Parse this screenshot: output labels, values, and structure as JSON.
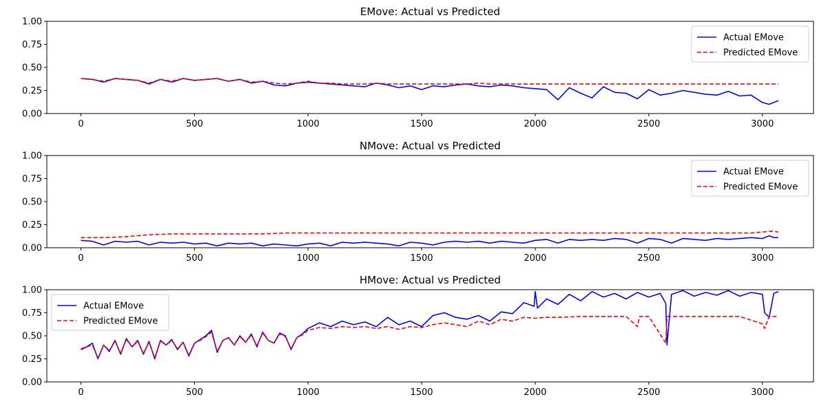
{
  "colors": {
    "actual": "#0000ff",
    "predicted": "#ff0000",
    "frame": "#000000",
    "legend_border": "#cccccc"
  },
  "chart_data": [
    {
      "type": "line",
      "title": "EMove: Actual vs Predicted",
      "xlabel": "",
      "ylabel": "",
      "xlim": [
        -150,
        3225
      ],
      "ylim": [
        0,
        1
      ],
      "xticks": [
        0,
        500,
        1000,
        1500,
        2000,
        2500,
        3000
      ],
      "yticks": [
        0.0,
        0.25,
        0.5,
        0.75,
        1.0
      ],
      "ytick_labels": [
        "0.00",
        "0.25",
        "0.50",
        "0.75",
        "1.00"
      ],
      "legend": "top-right",
      "grid": false,
      "series": [
        {
          "name": "Actual EMove",
          "style": "solid",
          "color": "#0000ff",
          "x": [
            0,
            50,
            100,
            150,
            200,
            250,
            300,
            350,
            400,
            450,
            500,
            550,
            600,
            650,
            700,
            750,
            800,
            850,
            900,
            950,
            1000,
            1050,
            1100,
            1150,
            1200,
            1250,
            1300,
            1350,
            1400,
            1450,
            1500,
            1550,
            1600,
            1650,
            1700,
            1750,
            1800,
            1850,
            1900,
            1950,
            2000,
            2050,
            2100,
            2150,
            2200,
            2250,
            2300,
            2350,
            2400,
            2450,
            2500,
            2550,
            2600,
            2650,
            2700,
            2750,
            2800,
            2850,
            2900,
            2950,
            3000,
            3030,
            3050,
            3070
          ],
          "y": [
            0.38,
            0.37,
            0.34,
            0.38,
            0.37,
            0.36,
            0.32,
            0.37,
            0.34,
            0.38,
            0.36,
            0.37,
            0.38,
            0.35,
            0.37,
            0.33,
            0.35,
            0.31,
            0.3,
            0.33,
            0.34,
            0.33,
            0.32,
            0.31,
            0.3,
            0.29,
            0.33,
            0.31,
            0.28,
            0.3,
            0.26,
            0.3,
            0.29,
            0.31,
            0.32,
            0.3,
            0.29,
            0.31,
            0.3,
            0.28,
            0.27,
            0.26,
            0.15,
            0.28,
            0.22,
            0.17,
            0.29,
            0.23,
            0.22,
            0.16,
            0.26,
            0.2,
            0.22,
            0.25,
            0.23,
            0.21,
            0.2,
            0.24,
            0.19,
            0.2,
            0.12,
            0.1,
            0.12,
            0.14
          ]
        },
        {
          "name": "Predicted EMove",
          "style": "dashed",
          "color": "#ff0000",
          "x": [
            0,
            50,
            100,
            150,
            200,
            250,
            300,
            350,
            400,
            450,
            500,
            550,
            600,
            650,
            700,
            750,
            800,
            850,
            900,
            950,
            1000,
            1050,
            1100,
            1150,
            1200,
            1250,
            1300,
            1350,
            1400,
            1500,
            1700,
            1750,
            1800,
            2000,
            2500,
            3000,
            3070
          ],
          "y": [
            0.38,
            0.37,
            0.35,
            0.38,
            0.37,
            0.36,
            0.33,
            0.37,
            0.35,
            0.38,
            0.36,
            0.37,
            0.38,
            0.35,
            0.37,
            0.34,
            0.35,
            0.33,
            0.32,
            0.33,
            0.35,
            0.33,
            0.33,
            0.32,
            0.32,
            0.32,
            0.33,
            0.32,
            0.32,
            0.32,
            0.32,
            0.33,
            0.32,
            0.32,
            0.32,
            0.32,
            0.32
          ]
        }
      ]
    },
    {
      "type": "line",
      "title": "NMove: Actual vs Predicted",
      "xlabel": "",
      "ylabel": "",
      "xlim": [
        -150,
        3225
      ],
      "ylim": [
        0,
        1
      ],
      "xticks": [
        0,
        500,
        1000,
        1500,
        2000,
        2500,
        3000
      ],
      "yticks": [
        0.0,
        0.25,
        0.5,
        0.75,
        1.0
      ],
      "ytick_labels": [
        "0.00",
        "0.25",
        "0.50",
        "0.75",
        "1.00"
      ],
      "legend": "top-right",
      "grid": false,
      "series": [
        {
          "name": "Actual EMove",
          "style": "solid",
          "color": "#0000ff",
          "x": [
            0,
            50,
            100,
            150,
            200,
            250,
            300,
            350,
            400,
            450,
            500,
            550,
            600,
            650,
            700,
            750,
            800,
            850,
            900,
            950,
            1000,
            1050,
            1100,
            1150,
            1200,
            1250,
            1300,
            1350,
            1400,
            1450,
            1500,
            1550,
            1600,
            1650,
            1700,
            1750,
            1800,
            1850,
            1900,
            1950,
            2000,
            2050,
            2100,
            2150,
            2200,
            2250,
            2300,
            2350,
            2400,
            2450,
            2500,
            2550,
            2600,
            2650,
            2700,
            2750,
            2800,
            2850,
            2900,
            2950,
            3000,
            3030,
            3050,
            3070
          ],
          "y": [
            0.08,
            0.07,
            0.03,
            0.07,
            0.06,
            0.07,
            0.03,
            0.06,
            0.05,
            0.06,
            0.04,
            0.05,
            0.02,
            0.05,
            0.04,
            0.05,
            0.02,
            0.04,
            0.03,
            0.02,
            0.04,
            0.05,
            0.02,
            0.06,
            0.05,
            0.06,
            0.05,
            0.04,
            0.02,
            0.06,
            0.05,
            0.03,
            0.06,
            0.07,
            0.06,
            0.07,
            0.05,
            0.07,
            0.06,
            0.05,
            0.08,
            0.09,
            0.05,
            0.09,
            0.08,
            0.09,
            0.08,
            0.1,
            0.09,
            0.05,
            0.1,
            0.09,
            0.05,
            0.1,
            0.09,
            0.08,
            0.1,
            0.09,
            0.1,
            0.11,
            0.1,
            0.13,
            0.11,
            0.11
          ]
        },
        {
          "name": "Predicted EMove",
          "style": "dashed",
          "color": "#ff0000",
          "x": [
            0,
            100,
            200,
            300,
            400,
            500,
            600,
            700,
            800,
            900,
            1000,
            1500,
            2000,
            2500,
            2950,
            3000,
            3040,
            3070
          ],
          "y": [
            0.11,
            0.11,
            0.12,
            0.14,
            0.15,
            0.15,
            0.15,
            0.15,
            0.15,
            0.16,
            0.16,
            0.16,
            0.16,
            0.16,
            0.16,
            0.17,
            0.18,
            0.17
          ]
        }
      ]
    },
    {
      "type": "line",
      "title": "HMove: Actual vs Predicted",
      "xlabel": "",
      "ylabel": "",
      "xlim": [
        -150,
        3225
      ],
      "ylim": [
        0,
        1
      ],
      "xticks": [
        0,
        500,
        1000,
        1500,
        2000,
        2500,
        3000
      ],
      "yticks": [
        0.0,
        0.25,
        0.5,
        0.75,
        1.0
      ],
      "ytick_labels": [
        "0.00",
        "0.25",
        "0.50",
        "0.75",
        "1.00"
      ],
      "legend": "top-left",
      "grid": false,
      "series": [
        {
          "name": "Actual EMove",
          "style": "solid",
          "color": "#0000ff",
          "x": [
            0,
            25,
            50,
            75,
            100,
            125,
            150,
            175,
            200,
            225,
            250,
            275,
            300,
            325,
            350,
            375,
            400,
            425,
            450,
            475,
            500,
            525,
            550,
            575,
            600,
            625,
            650,
            675,
            700,
            725,
            750,
            775,
            800,
            825,
            850,
            875,
            900,
            925,
            950,
            975,
            1000,
            1050,
            1100,
            1150,
            1200,
            1250,
            1300,
            1350,
            1400,
            1450,
            1500,
            1550,
            1600,
            1650,
            1700,
            1750,
            1800,
            1850,
            1900,
            1950,
            1995,
            2000,
            2010,
            2050,
            2100,
            2150,
            2200,
            2250,
            2300,
            2350,
            2400,
            2450,
            2500,
            2550,
            2575,
            2580,
            2600,
            2650,
            2700,
            2750,
            2800,
            2850,
            2900,
            2950,
            3000,
            3010,
            3030,
            3050,
            3070
          ],
          "y": [
            0.35,
            0.38,
            0.42,
            0.25,
            0.4,
            0.33,
            0.45,
            0.3,
            0.47,
            0.38,
            0.45,
            0.3,
            0.44,
            0.25,
            0.45,
            0.4,
            0.46,
            0.35,
            0.43,
            0.28,
            0.42,
            0.46,
            0.5,
            0.56,
            0.32,
            0.45,
            0.48,
            0.4,
            0.5,
            0.43,
            0.52,
            0.38,
            0.54,
            0.45,
            0.42,
            0.53,
            0.5,
            0.35,
            0.48,
            0.52,
            0.58,
            0.64,
            0.6,
            0.66,
            0.62,
            0.65,
            0.6,
            0.7,
            0.62,
            0.66,
            0.6,
            0.72,
            0.75,
            0.7,
            0.68,
            0.72,
            0.66,
            0.76,
            0.74,
            0.86,
            0.82,
            0.98,
            0.8,
            0.9,
            0.84,
            0.95,
            0.88,
            0.98,
            0.92,
            0.96,
            0.9,
            0.97,
            0.92,
            0.96,
            0.85,
            0.4,
            0.95,
            0.99,
            0.93,
            0.97,
            0.94,
            0.99,
            0.93,
            0.97,
            0.95,
            0.75,
            0.7,
            0.96,
            0.98
          ]
        },
        {
          "name": "Predicted EMove",
          "style": "dashed",
          "color": "#ff0000",
          "x": [
            0,
            25,
            50,
            75,
            100,
            125,
            150,
            175,
            200,
            225,
            250,
            275,
            300,
            325,
            350,
            375,
            400,
            425,
            450,
            475,
            500,
            525,
            550,
            575,
            600,
            625,
            650,
            675,
            700,
            725,
            750,
            775,
            800,
            825,
            850,
            875,
            900,
            925,
            950,
            975,
            1000,
            1050,
            1100,
            1150,
            1200,
            1250,
            1300,
            1350,
            1400,
            1450,
            1500,
            1550,
            1600,
            1650,
            1700,
            1750,
            1800,
            1850,
            1900,
            1950,
            2000,
            2050,
            2100,
            2200,
            2300,
            2400,
            2450,
            2460,
            2500,
            2575,
            2580,
            2600,
            2700,
            2800,
            2900,
            3000,
            3010,
            3030,
            3070
          ],
          "y": [
            0.36,
            0.38,
            0.4,
            0.26,
            0.4,
            0.34,
            0.44,
            0.31,
            0.46,
            0.38,
            0.44,
            0.31,
            0.43,
            0.26,
            0.44,
            0.4,
            0.45,
            0.36,
            0.43,
            0.29,
            0.42,
            0.45,
            0.49,
            0.54,
            0.33,
            0.45,
            0.48,
            0.4,
            0.49,
            0.43,
            0.51,
            0.39,
            0.53,
            0.45,
            0.42,
            0.52,
            0.49,
            0.36,
            0.48,
            0.51,
            0.56,
            0.59,
            0.58,
            0.6,
            0.59,
            0.6,
            0.58,
            0.6,
            0.57,
            0.6,
            0.59,
            0.62,
            0.64,
            0.62,
            0.6,
            0.66,
            0.62,
            0.68,
            0.66,
            0.7,
            0.69,
            0.7,
            0.7,
            0.71,
            0.71,
            0.71,
            0.6,
            0.71,
            0.71,
            0.42,
            0.71,
            0.71,
            0.71,
            0.71,
            0.71,
            0.63,
            0.58,
            0.71,
            0.71
          ]
        }
      ]
    }
  ]
}
